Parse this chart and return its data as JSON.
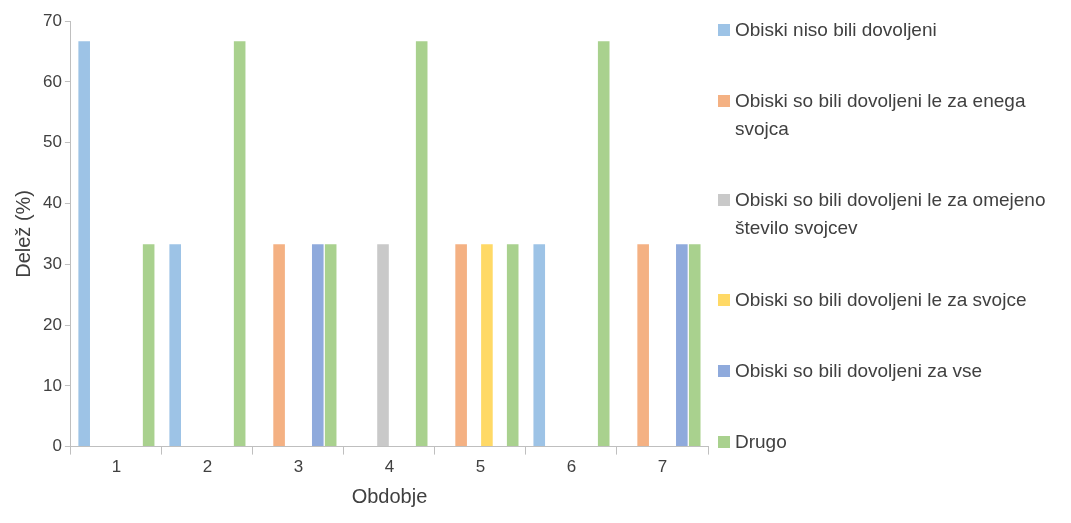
{
  "chart_data": {
    "type": "bar",
    "xlabel": "Obdobje",
    "ylabel": "Delež (%)",
    "categories": [
      "1",
      "2",
      "3",
      "4",
      "5",
      "6",
      "7"
    ],
    "series": [
      {
        "name": "Obiski niso bili dovoljeni",
        "color": "#9dc3e6",
        "values": [
          66.7,
          33.3,
          0,
          0,
          0,
          33.3,
          0
        ]
      },
      {
        "name": "Obiski so bili dovoljeni le za enega svojca",
        "color": "#f4b183",
        "values": [
          0,
          0,
          33.3,
          0,
          33.3,
          0,
          33.3
        ]
      },
      {
        "name": "Obiski so bili dovoljeni le za omejeno število svojcev",
        "color": "#c9c9c9",
        "values": [
          0,
          0,
          0,
          33.3,
          0,
          0,
          0
        ]
      },
      {
        "name": "Obiski so bili dovoljeni le za svojce",
        "color": "#ffd966",
        "values": [
          0,
          0,
          0,
          0,
          33.3,
          0,
          0
        ]
      },
      {
        "name": "Obiski so bili dovoljeni za vse",
        "color": "#8faadc",
        "values": [
          0,
          0,
          33.3,
          0,
          0,
          0,
          33.3
        ]
      },
      {
        "name": "Drugo",
        "color": "#a9d18e",
        "values": [
          33.3,
          66.7,
          33.3,
          66.7,
          33.3,
          66.7,
          33.3
        ]
      }
    ],
    "ylim": [
      0,
      70
    ],
    "yticks": [
      0,
      10,
      20,
      30,
      40,
      50,
      60,
      70
    ],
    "grid": false,
    "legend": "right"
  }
}
